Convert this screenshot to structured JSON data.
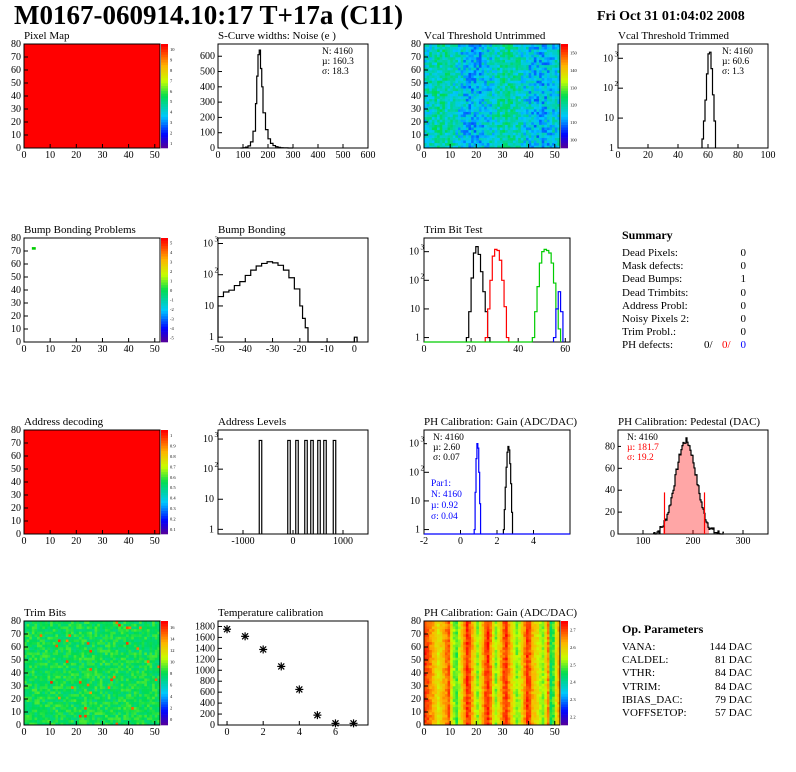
{
  "header": {
    "title": "M0167-060914.10:17 T+17a (C11)",
    "date": "Fri Oct 31 01:04:02 2008"
  },
  "colors": {
    "red": "#ff0000",
    "blue": "#0000ff",
    "green": "#00cc00"
  },
  "chart_data": [
    {
      "id": "pixel_map",
      "type": "heatmap",
      "title": "Pixel Map",
      "xlim": [
        0,
        52
      ],
      "ylim": [
        0,
        80
      ],
      "xticks": [
        0,
        10,
        20,
        30,
        40,
        50
      ],
      "yticks": [
        0,
        10,
        20,
        30,
        40,
        50,
        60,
        70,
        80
      ],
      "palette_ticks": [
        "1",
        "2",
        "3",
        "4",
        "5",
        "6",
        "7",
        "8",
        "9",
        "10"
      ],
      "fill": "uniform red (10)"
    },
    {
      "id": "scurve",
      "type": "histogram",
      "title": "S-Curve widths: Noise (e )",
      "xlim": [
        0,
        600
      ],
      "ylim": [
        0,
        680
      ],
      "xticks": [
        0,
        100,
        200,
        300,
        400,
        500,
        600
      ],
      "yticks": [
        0,
        100,
        200,
        300,
        400,
        500,
        600
      ],
      "stats": {
        "n": "N: 4160",
        "mu": "µ: 160.3",
        "sigma": "σ: 18.3"
      },
      "x": [
        90,
        100,
        110,
        120,
        130,
        140,
        150,
        155,
        160,
        165,
        170,
        175,
        180,
        190,
        200,
        210,
        220,
        230,
        240,
        250,
        260,
        270,
        280,
        290,
        300
      ],
      "y": [
        0,
        2,
        6,
        14,
        40,
        110,
        290,
        470,
        610,
        640,
        520,
        400,
        230,
        120,
        60,
        30,
        16,
        8,
        4,
        2,
        1,
        1,
        0,
        0,
        0
      ]
    },
    {
      "id": "vcal_untrimmed",
      "type": "heatmap",
      "title": "Vcal Threshold Untrimmed",
      "xlim": [
        0,
        52
      ],
      "ylim": [
        0,
        80
      ],
      "xticks": [
        0,
        10,
        20,
        30,
        40,
        50
      ],
      "yticks": [
        0,
        10,
        20,
        30,
        40,
        50,
        60,
        70,
        80
      ],
      "palette_ticks": [
        "100",
        "110",
        "120",
        "130",
        "140",
        "150"
      ],
      "fill": "noisy blue/cyan"
    },
    {
      "id": "vcal_trimmed",
      "type": "histogram",
      "title": "Vcal Threshold Trimmed",
      "xlim": [
        0,
        100
      ],
      "log": true,
      "ylog": [
        1,
        3000
      ],
      "xticks": [
        0,
        20,
        40,
        60,
        80,
        100
      ],
      "yticks": [
        "1",
        "10",
        "10^2",
        "10^3"
      ],
      "stats": {
        "n": "N: 4160",
        "mu": "µ: 60.6",
        "sigma": "σ:  1.3"
      },
      "x": [
        56,
        57,
        58,
        59,
        60,
        61,
        62,
        63,
        64,
        65
      ],
      "y": [
        2,
        8,
        40,
        300,
        1400,
        1600,
        450,
        60,
        8,
        1
      ]
    },
    {
      "id": "bump_problems",
      "type": "heatmap",
      "title": "Bump Bonding Problems",
      "xlim": [
        0,
        52
      ],
      "ylim": [
        0,
        80
      ],
      "xticks": [
        0,
        10,
        20,
        30,
        40,
        50
      ],
      "yticks": [
        0,
        10,
        20,
        30,
        40,
        50,
        60,
        70,
        80
      ],
      "palette_ticks": [
        "-5",
        "-4",
        "-3",
        "-2",
        "-1",
        "0",
        "1",
        "2",
        "3",
        "4",
        "5"
      ],
      "points": [
        {
          "x": 3,
          "y": 72
        }
      ]
    },
    {
      "id": "bump_bonding",
      "type": "histogram",
      "title": "Bump Bonding",
      "xlim": [
        -50,
        5
      ],
      "log": true,
      "ylog": [
        0.7,
        1500
      ],
      "xticks": [
        -50,
        -40,
        -30,
        -20,
        -10,
        0
      ],
      "yticks": [
        "1",
        "10",
        "10^2",
        "10^3"
      ],
      "x": [
        -50,
        -48,
        -46,
        -44,
        -42,
        -40,
        -38,
        -36,
        -34,
        -32,
        -30,
        -28,
        -26,
        -24,
        -22,
        -20,
        -19,
        -18,
        -17,
        -16,
        0,
        1
      ],
      "y": [
        20,
        28,
        32,
        45,
        60,
        95,
        140,
        190,
        230,
        260,
        240,
        200,
        140,
        80,
        35,
        10,
        4,
        2,
        0.7,
        0.7,
        1,
        0.7
      ]
    },
    {
      "id": "trim_bit_test",
      "type": "histogram",
      "title": "Trim Bit Test",
      "xlim": [
        0,
        62
      ],
      "log": true,
      "ylog": [
        0.7,
        3000
      ],
      "xticks": [
        0,
        20,
        40,
        60
      ],
      "yticks": [
        "1",
        "10",
        "10^2",
        "10^3"
      ],
      "series": [
        {
          "color": "#000000",
          "x": [
            18,
            19,
            20,
            21,
            22,
            23,
            24,
            25,
            26,
            27,
            28
          ],
          "y": [
            1,
            8,
            120,
            900,
            1500,
            800,
            200,
            40,
            8,
            1,
            0.7
          ]
        },
        {
          "color": "#ff0000",
          "x": [
            26,
            27,
            28,
            29,
            30,
            31,
            32,
            33,
            34,
            35,
            36
          ],
          "y": [
            1,
            10,
            100,
            700,
            1200,
            1100,
            500,
            100,
            12,
            1,
            0.7
          ]
        },
        {
          "color": "#00cc00",
          "x": [
            46,
            47,
            48,
            49,
            50,
            51,
            52,
            53,
            54,
            55,
            56,
            57,
            58
          ],
          "y": [
            1,
            8,
            60,
            400,
            1000,
            1200,
            1100,
            900,
            400,
            80,
            10,
            2,
            0.7
          ]
        },
        {
          "color": "#0000ff",
          "x": [
            55,
            56,
            57,
            58,
            59
          ],
          "y": [
            1,
            10,
            40,
            8,
            1
          ]
        }
      ]
    },
    {
      "id": "address_decoding",
      "type": "heatmap",
      "title": "Address decoding",
      "xlim": [
        0,
        52
      ],
      "ylim": [
        0,
        80
      ],
      "xticks": [
        0,
        10,
        20,
        30,
        40,
        50
      ],
      "yticks": [
        0,
        10,
        20,
        30,
        40,
        50,
        60,
        70,
        80
      ],
      "palette_ticks": [
        "0.1",
        "0.2",
        "0.3",
        "0.4",
        "0.5",
        "0.6",
        "0.7",
        "0.8",
        "0.9",
        "1"
      ],
      "fill": "uniform red (1)"
    },
    {
      "id": "address_levels",
      "type": "histogram",
      "title": "Address Levels",
      "xlim": [
        -1500,
        1500
      ],
      "log": true,
      "ylog": [
        0.7,
        2000
      ],
      "xticks": [
        -1000,
        0,
        1000
      ],
      "yticks": [
        "1",
        "10",
        "10^2",
        "10^3"
      ],
      "peaks": [
        -650,
        -80,
        80,
        260,
        380,
        520,
        640,
        830
      ],
      "peak_height": 900
    },
    {
      "id": "ph_gain",
      "type": "histogram",
      "title": "PH Calibration: Gain (ADC/DAC)",
      "xlim": [
        -2,
        6
      ],
      "log": true,
      "ylog": [
        0.7,
        3000
      ],
      "xticks": [
        -2,
        0,
        2,
        4
      ],
      "yticks": [
        "1",
        "10",
        "10^2",
        "10^3"
      ],
      "stats": {
        "n": "N: 4160",
        "mu": "µ: 2.60",
        "sigma": "σ: 0.07"
      },
      "par": {
        "label": "Par1:",
        "n": "N: 4160",
        "mu": "µ: 0.92",
        "sigma": "σ: 0.04"
      },
      "series": [
        {
          "color": "#000000",
          "x": [
            2.35,
            2.4,
            2.45,
            2.5,
            2.55,
            2.6,
            2.65,
            2.7,
            2.75,
            2.8,
            2.85
          ],
          "y": [
            1,
            5,
            30,
            150,
            500,
            800,
            600,
            200,
            40,
            4,
            1
          ]
        },
        {
          "color": "#0000ff",
          "x": [
            0.75,
            0.8,
            0.85,
            0.9,
            0.95,
            1.0,
            1.05,
            1.1
          ],
          "y": [
            1,
            20,
            300,
            1000,
            700,
            100,
            8,
            1
          ]
        }
      ]
    },
    {
      "id": "ph_pedestal",
      "type": "histogram",
      "title": "PH Calibration: Pedestal (DAC)",
      "xlim": [
        50,
        350
      ],
      "ylim": [
        0,
        95
      ],
      "xticks": [
        100,
        200,
        300
      ],
      "yticks": [
        0,
        20,
        40,
        60,
        80
      ],
      "stats": {
        "n": "N: 4160",
        "mu": "µ: 181.7",
        "sigma": "σ: 19.2"
      }
    },
    {
      "id": "trim_bits",
      "type": "heatmap",
      "title": "Trim Bits",
      "xlim": [
        0,
        52
      ],
      "ylim": [
        0,
        80
      ],
      "xticks": [
        0,
        10,
        20,
        30,
        40,
        50
      ],
      "yticks": [
        0,
        10,
        20,
        30,
        40,
        50,
        60,
        70,
        80
      ],
      "palette_ticks": [
        "0",
        "2",
        "4",
        "6",
        "8",
        "10",
        "12",
        "14",
        "16"
      ],
      "fill": "noisy green"
    },
    {
      "id": "temperature",
      "type": "scatter",
      "title": "Temperature calibration",
      "xlim": [
        -0.5,
        7.8
      ],
      "ylim": [
        0,
        1900
      ],
      "xticks": [
        0,
        2,
        4,
        6
      ],
      "yticks": [
        0,
        200,
        400,
        600,
        800,
        1000,
        1200,
        1400,
        1600,
        1800
      ],
      "x": [
        0,
        1,
        2,
        3,
        4,
        5,
        6,
        7
      ],
      "y": [
        1750,
        1620,
        1380,
        1070,
        650,
        180,
        30,
        30
      ]
    },
    {
      "id": "ph_gain_map",
      "type": "heatmap",
      "title": "PH Calibration: Gain (ADC/DAC)",
      "xlim": [
        0,
        52
      ],
      "ylim": [
        0,
        80
      ],
      "xticks": [
        0,
        10,
        20,
        30,
        40,
        50
      ],
      "yticks": [
        0,
        10,
        20,
        30,
        40,
        50,
        60,
        70,
        80
      ],
      "palette_ticks": [
        "2.2",
        "2.3",
        "2.4",
        "2.5",
        "2.6",
        "2.7"
      ],
      "fill": "striped red/yellow"
    }
  ],
  "summary": {
    "heading": "Summary",
    "rows": [
      {
        "label": "Dead Pixels:",
        "value": "0"
      },
      {
        "label": "Mask defects:",
        "value": "0"
      },
      {
        "label": "Dead Bumps:",
        "value": "1"
      },
      {
        "label": "Dead Trimbits:",
        "value": "0"
      },
      {
        "label": "Address Probl:",
        "value": "0"
      },
      {
        "label": "Noisy Pixels 2:",
        "value": "0"
      },
      {
        "label": "Trim Probl.:",
        "value": "0"
      }
    ],
    "ph_label": "PH defects:",
    "ph_vals": [
      "0/",
      "0/",
      "0"
    ]
  },
  "op_parameters": {
    "heading": "Op. Parameters",
    "rows": [
      {
        "label": "VANA:",
        "value": "144 DAC"
      },
      {
        "label": "CALDEL:",
        "value": "81 DAC"
      },
      {
        "label": "VTHR:",
        "value": "84 DAC"
      },
      {
        "label": "VTRIM:",
        "value": "84 DAC"
      },
      {
        "label": "IBIAS_DAC:",
        "value": "79 DAC"
      },
      {
        "label": "VOFFSETOP:",
        "value": "57 DAC"
      }
    ]
  }
}
